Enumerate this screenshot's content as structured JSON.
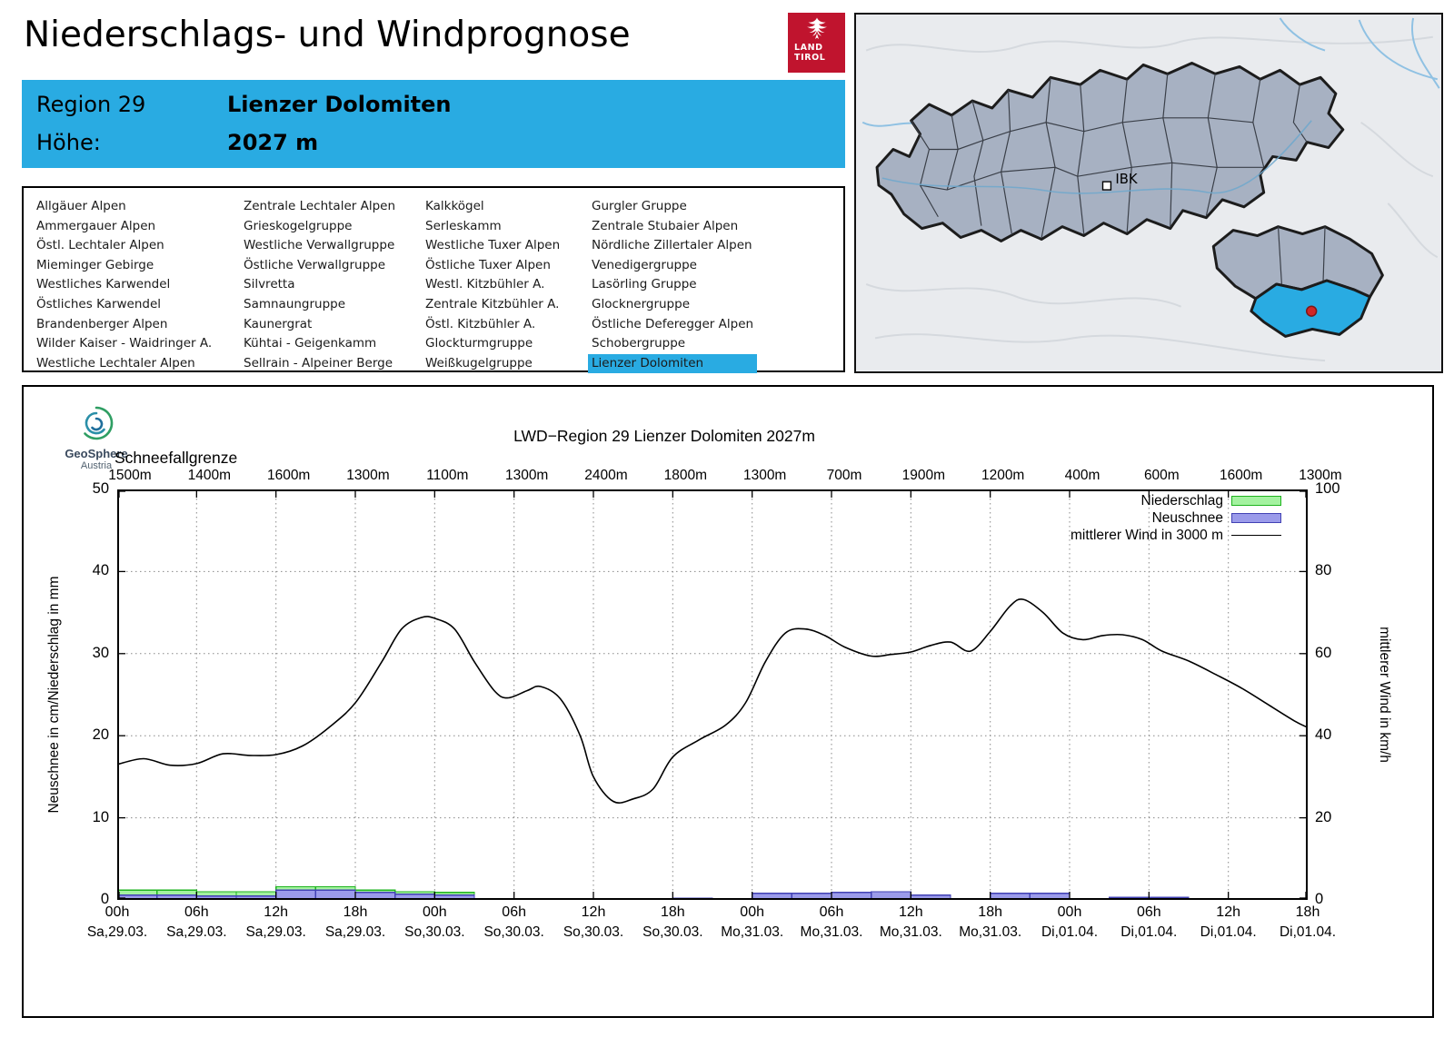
{
  "accent_color": "#29abe2",
  "header": {
    "title": "Niederschlags- und Windprognose",
    "logo_line1": "LAND",
    "logo_line2": "TIROL"
  },
  "region_box": {
    "region_label": "Region 29",
    "region_name": "Lienzer Dolomiten",
    "altitude_label": "Höhe:",
    "altitude_value": "2027 m"
  },
  "region_list": {
    "selected": "Lienzer Dolomiten",
    "columns": [
      [
        "Allgäuer Alpen",
        "Ammergauer Alpen",
        "Östl. Lechtaler Alpen",
        "Mieminger Gebirge",
        "Westliches Karwendel",
        "Östliches Karwendel",
        "Brandenberger Alpen",
        "Wilder Kaiser - Waidringer A.",
        "Westliche Lechtaler Alpen"
      ],
      [
        "Zentrale Lechtaler Alpen",
        "Grieskogelgruppe",
        "Westliche Verwallgruppe",
        "Östliche Verwallgruppe",
        "Silvretta",
        "Samnaungruppe",
        "Kaunergrat",
        "Kühtai - Geigenkamm",
        "Sellrain - Alpeiner Berge"
      ],
      [
        "Kalkkögel",
        "Serleskamm",
        "Westliche Tuxer Alpen",
        "Östliche Tuxer Alpen",
        "Westl. Kitzbühler A.",
        "Zentrale Kitzbühler A.",
        "Östl. Kitzbühler A.",
        "Glockturmgruppe",
        "Weißkugelgruppe"
      ],
      [
        "Gurgler Gruppe",
        "Zentrale Stubaier Alpen",
        "Nördliche Zillertaler Alpen",
        "Venedigergruppe",
        "Lasörling Gruppe",
        "Glocknergruppe",
        "Östliche Deferegger Alpen",
        "Schobergruppe",
        "Lienzer Dolomiten"
      ]
    ]
  },
  "map": {
    "city_label": "IBK"
  },
  "brand": {
    "name": "GeoSphere",
    "sub": "Austria"
  },
  "chart_data": {
    "type": "line",
    "title": "LWD−Region 29 Lienzer Dolomiten 2027m",
    "snowline_label": "Schneefallgrenze",
    "snowline_values": [
      "1500m",
      "1400m",
      "1600m",
      "1300m",
      "1100m",
      "1300m",
      "2400m",
      "1800m",
      "1300m",
      "700m",
      "1900m",
      "1200m",
      "400m",
      "600m",
      "1600m",
      "1300m"
    ],
    "x_hours_max": 90,
    "x_ticks": [
      {
        "t": 0,
        "time": "00h",
        "date": "Sa,29.03."
      },
      {
        "t": 6,
        "time": "06h",
        "date": "Sa,29.03."
      },
      {
        "t": 12,
        "time": "12h",
        "date": "Sa,29.03."
      },
      {
        "t": 18,
        "time": "18h",
        "date": "Sa,29.03."
      },
      {
        "t": 24,
        "time": "00h",
        "date": "So,30.03."
      },
      {
        "t": 30,
        "time": "06h",
        "date": "So,30.03."
      },
      {
        "t": 36,
        "time": "12h",
        "date": "So,30.03."
      },
      {
        "t": 42,
        "time": "18h",
        "date": "So,30.03."
      },
      {
        "t": 48,
        "time": "00h",
        "date": "Mo,31.03."
      },
      {
        "t": 54,
        "time": "06h",
        "date": "Mo,31.03."
      },
      {
        "t": 60,
        "time": "12h",
        "date": "Mo,31.03."
      },
      {
        "t": 66,
        "time": "18h",
        "date": "Mo,31.03."
      },
      {
        "t": 72,
        "time": "00h",
        "date": "Di,01.04."
      },
      {
        "t": 78,
        "time": "06h",
        "date": "Di,01.04."
      },
      {
        "t": 84,
        "time": "12h",
        "date": "Di,01.04."
      },
      {
        "t": 90,
        "time": "18h",
        "date": "Di,01.04."
      }
    ],
    "left_axis": {
      "label": "Neuschnee in cm/Niederschlag in mm",
      "min": 0,
      "max": 50,
      "ticks": [
        0,
        10,
        20,
        30,
        40,
        50
      ]
    },
    "right_axis": {
      "label": "mittlerer Wind in km/h",
      "min": 0,
      "max": 100,
      "ticks": [
        0,
        20,
        40,
        60,
        80,
        100
      ]
    },
    "bar_slot_hours": 3,
    "grid": true,
    "legend_position": "top-right",
    "series": [
      {
        "name": "Niederschlag",
        "type": "bar",
        "unit": "mm",
        "axis": "left",
        "fill": "#a4f2a0",
        "edge": "#1fb41f",
        "values": [
          1.2,
          1.2,
          1.0,
          1.0,
          1.6,
          1.6,
          1.2,
          1.0,
          0.9,
          0,
          0,
          0,
          0,
          0,
          0.2,
          0.15,
          0.8,
          0.8,
          0.9,
          1.0,
          0.6,
          0,
          0.8,
          0.8,
          0,
          0.3,
          0.3,
          0,
          0,
          0
        ]
      },
      {
        "name": "Neuschnee",
        "type": "bar",
        "unit": "cm",
        "axis": "left",
        "fill": "#9b9bea",
        "edge": "#4242b4",
        "values": [
          0.6,
          0.6,
          0.45,
          0.45,
          1.2,
          1.2,
          0.9,
          0.7,
          0.6,
          0,
          0,
          0,
          0,
          0,
          0.2,
          0.15,
          0.8,
          0.8,
          0.9,
          1.0,
          0.6,
          0,
          0.8,
          0.8,
          0,
          0.3,
          0.3,
          0,
          0,
          0
        ]
      },
      {
        "name": "mittlerer Wind in 3000 m",
        "type": "line",
        "unit": "km/h",
        "axis": "right",
        "color": "#000000",
        "points": [
          [
            0,
            33
          ],
          [
            2,
            34.4
          ],
          [
            4,
            32.8
          ],
          [
            6,
            33.2
          ],
          [
            8,
            35.6
          ],
          [
            10,
            35.2
          ],
          [
            12,
            35.4
          ],
          [
            14,
            37.5
          ],
          [
            16,
            42
          ],
          [
            18,
            48
          ],
          [
            20,
            58
          ],
          [
            21.5,
            66
          ],
          [
            23,
            68.8
          ],
          [
            24,
            68.6
          ],
          [
            25.5,
            66
          ],
          [
            27,
            58
          ],
          [
            28.5,
            51
          ],
          [
            29.5,
            49.2
          ],
          [
            31,
            51
          ],
          [
            32,
            52
          ],
          [
            33.5,
            49
          ],
          [
            35,
            40
          ],
          [
            36,
            30
          ],
          [
            37.5,
            24
          ],
          [
            39,
            24.6
          ],
          [
            40.5,
            27
          ],
          [
            42,
            34.8
          ],
          [
            44,
            39
          ],
          [
            46,
            42.6
          ],
          [
            47.5,
            48
          ],
          [
            49,
            58
          ],
          [
            50.5,
            65
          ],
          [
            52,
            66
          ],
          [
            53.5,
            64.4
          ],
          [
            55,
            61.6
          ],
          [
            57,
            59.4
          ],
          [
            58.5,
            59.8
          ],
          [
            60,
            60.4
          ],
          [
            61.5,
            62
          ],
          [
            63,
            62.8
          ],
          [
            64.5,
            60.6
          ],
          [
            66,
            65.4
          ],
          [
            67.5,
            71.6
          ],
          [
            68.5,
            73.2
          ],
          [
            70,
            70
          ],
          [
            71.5,
            65
          ],
          [
            73,
            63.4
          ],
          [
            74.5,
            64.4
          ],
          [
            76,
            64.6
          ],
          [
            77.5,
            63.4
          ],
          [
            79,
            60.6
          ],
          [
            81,
            58.2
          ],
          [
            83,
            55
          ],
          [
            85,
            51.6
          ],
          [
            87,
            47.6
          ],
          [
            89,
            43.6
          ],
          [
            90,
            42
          ]
        ]
      }
    ]
  }
}
